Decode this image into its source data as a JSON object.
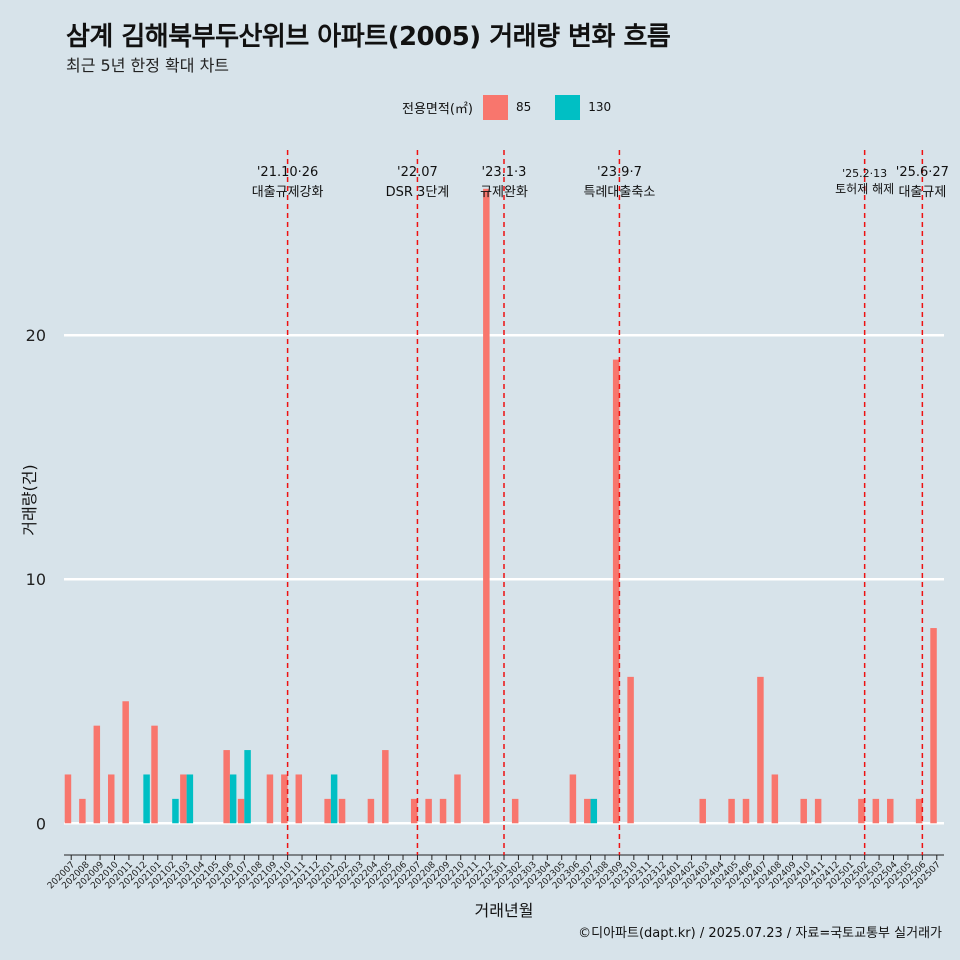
{
  "title": "삼계 김해북부두산위브 아파트(2005) 거래량 변화 흐름",
  "subtitle": "최근 5년 한정 확대 차트",
  "caption": "©디아파트(dapt.kr) / 2025.07.23 / 자료=국토교통부 실거래가",
  "legend": {
    "title": "전용면적(㎡)",
    "items": [
      {
        "label": "85",
        "color": "#f8766d"
      },
      {
        "label": "130",
        "color": "#00bfc4"
      }
    ]
  },
  "chart_data": {
    "type": "bar",
    "xlabel": "거래년월",
    "ylabel": "거래량(건)",
    "ylim": [
      -1.3,
      28
    ],
    "yticks": [
      0,
      10,
      20
    ],
    "grid": true,
    "legend_position": "top",
    "categories": [
      "202007",
      "202008",
      "202009",
      "202010",
      "202011",
      "202012",
      "202101",
      "202102",
      "202103",
      "202104",
      "202105",
      "202106",
      "202107",
      "202108",
      "202109",
      "202110",
      "202111",
      "202112",
      "202201",
      "202202",
      "202203",
      "202204",
      "202205",
      "202206",
      "202207",
      "202208",
      "202209",
      "202210",
      "202211",
      "202212",
      "202301",
      "202302",
      "202303",
      "202304",
      "202305",
      "202306",
      "202307",
      "202308",
      "202309",
      "202310",
      "202311",
      "202312",
      "202401",
      "202402",
      "202403",
      "202404",
      "202405",
      "202406",
      "202407",
      "202408",
      "202409",
      "202410",
      "202411",
      "202412",
      "202501",
      "202502",
      "202503",
      "202504",
      "202505",
      "202506",
      "202507"
    ],
    "series": [
      {
        "name": "85",
        "color": "#f8766d",
        "values": [
          2,
          1,
          4,
          2,
          5,
          0,
          4,
          0,
          2,
          0,
          0,
          3,
          1,
          0,
          2,
          2,
          2,
          0,
          1,
          1,
          0,
          1,
          3,
          0,
          1,
          1,
          1,
          2,
          0,
          26,
          0,
          1,
          0,
          0,
          0,
          2,
          1,
          0,
          19,
          6,
          0,
          0,
          0,
          0,
          1,
          0,
          1,
          1,
          6,
          2,
          0,
          1,
          1,
          0,
          0,
          1,
          1,
          1,
          0,
          1,
          8
        ]
      },
      {
        "name": "130",
        "color": "#00bfc4",
        "values": [
          0,
          0,
          0,
          0,
          0,
          2,
          0,
          1,
          2,
          0,
          0,
          2,
          3,
          0,
          0,
          0,
          0,
          0,
          2,
          0,
          0,
          0,
          0,
          0,
          0,
          0,
          0,
          0,
          0,
          0,
          0,
          0,
          0,
          0,
          0,
          0,
          1,
          0,
          0,
          0,
          0,
          0,
          0,
          0,
          0,
          0,
          0,
          0,
          0,
          0,
          0,
          0,
          0,
          0,
          0,
          0,
          0,
          0,
          0,
          0,
          0
        ]
      }
    ],
    "annotations": [
      {
        "month": "202110",
        "date": "'21.10·26",
        "label": "대출규제강화"
      },
      {
        "month": "202207",
        "date": "'22.07",
        "label": "DSR 3단계"
      },
      {
        "month": "202301",
        "date": "'23.1·3",
        "label": "규제완화"
      },
      {
        "month": "202309",
        "date": "'23.9·7",
        "label": "특례대출축소"
      },
      {
        "month": "202502",
        "date": "'25.2·13",
        "label": "토허제 해제"
      },
      {
        "month": "202506",
        "date": "'25.6·27",
        "label": "대출규제"
      }
    ]
  }
}
